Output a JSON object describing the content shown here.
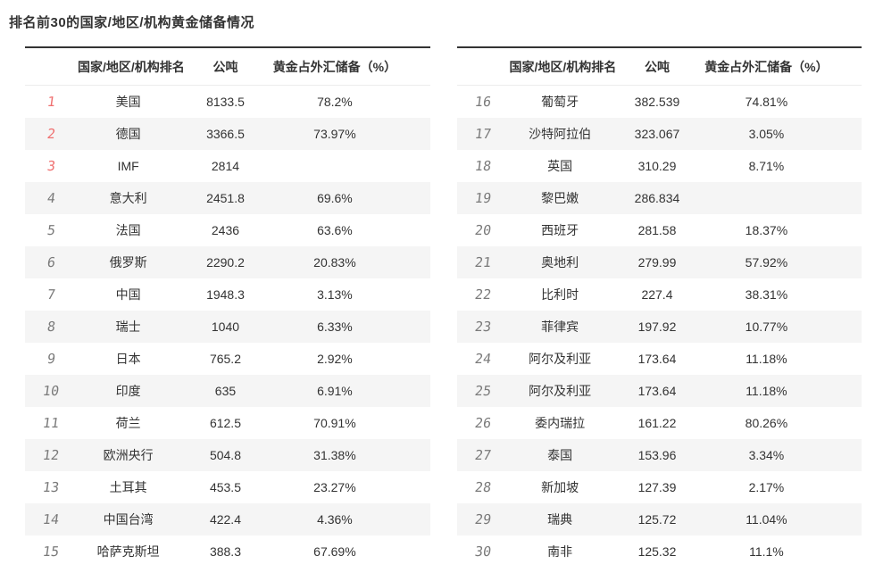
{
  "title": "排名前30的国家/地区/机构黄金储备情况",
  "colors": {
    "text": "#333333",
    "rank_gray": "#7a7a7a",
    "rank_top3_red": "#ef6f6f",
    "row_alt_bg": "#f5f5f5",
    "table_top_border": "#333333"
  },
  "tables": [
    {
      "headers": {
        "name": "国家/地区/机构排名",
        "tonnes": "公吨",
        "pct": "黄金占外汇储备（%）"
      },
      "rows": [
        {
          "rank": "1",
          "name": "美国",
          "tonnes": "8133.5",
          "pct": "78.2%",
          "highlight": true
        },
        {
          "rank": "2",
          "name": "德国",
          "tonnes": "3366.5",
          "pct": "73.97%",
          "highlight": true
        },
        {
          "rank": "3",
          "name": "IMF",
          "tonnes": "2814",
          "pct": "",
          "highlight": true
        },
        {
          "rank": "4",
          "name": "意大利",
          "tonnes": "2451.8",
          "pct": "69.6%"
        },
        {
          "rank": "5",
          "name": "法国",
          "tonnes": "2436",
          "pct": "63.6%"
        },
        {
          "rank": "6",
          "name": "俄罗斯",
          "tonnes": "2290.2",
          "pct": "20.83%"
        },
        {
          "rank": "7",
          "name": "中国",
          "tonnes": "1948.3",
          "pct": "3.13%"
        },
        {
          "rank": "8",
          "name": "瑞士",
          "tonnes": "1040",
          "pct": "6.33%"
        },
        {
          "rank": "9",
          "name": "日本",
          "tonnes": "765.2",
          "pct": "2.92%"
        },
        {
          "rank": "10",
          "name": "印度",
          "tonnes": "635",
          "pct": "6.91%"
        },
        {
          "rank": "11",
          "name": "荷兰",
          "tonnes": "612.5",
          "pct": "70.91%"
        },
        {
          "rank": "12",
          "name": "欧洲央行",
          "tonnes": "504.8",
          "pct": "31.38%"
        },
        {
          "rank": "13",
          "name": "土耳其",
          "tonnes": "453.5",
          "pct": "23.27%"
        },
        {
          "rank": "14",
          "name": "中国台湾",
          "tonnes": "422.4",
          "pct": "4.36%"
        },
        {
          "rank": "15",
          "name": "哈萨克斯坦",
          "tonnes": "388.3",
          "pct": "67.69%"
        }
      ]
    },
    {
      "headers": {
        "name": "国家/地区/机构排名",
        "tonnes": "公吨",
        "pct": "黄金占外汇储备（%）"
      },
      "rows": [
        {
          "rank": "16",
          "name": "葡萄牙",
          "tonnes": "382.539",
          "pct": "74.81%"
        },
        {
          "rank": "17",
          "name": "沙特阿拉伯",
          "tonnes": "323.067",
          "pct": "3.05%"
        },
        {
          "rank": "18",
          "name": "英国",
          "tonnes": "310.29",
          "pct": "8.71%"
        },
        {
          "rank": "19",
          "name": "黎巴嫩",
          "tonnes": "286.834",
          "pct": ""
        },
        {
          "rank": "20",
          "name": "西班牙",
          "tonnes": "281.58",
          "pct": "18.37%"
        },
        {
          "rank": "21",
          "name": "奥地利",
          "tonnes": "279.99",
          "pct": "57.92%"
        },
        {
          "rank": "22",
          "name": "比利时",
          "tonnes": "227.4",
          "pct": "38.31%"
        },
        {
          "rank": "23",
          "name": "菲律宾",
          "tonnes": "197.92",
          "pct": "10.77%"
        },
        {
          "rank": "24",
          "name": "阿尔及利亚",
          "tonnes": "173.64",
          "pct": "11.18%"
        },
        {
          "rank": "25",
          "name": "阿尔及利亚",
          "tonnes": "173.64",
          "pct": "11.18%"
        },
        {
          "rank": "26",
          "name": "委内瑞拉",
          "tonnes": "161.22",
          "pct": "80.26%"
        },
        {
          "rank": "27",
          "name": "泰国",
          "tonnes": "153.96",
          "pct": "3.34%"
        },
        {
          "rank": "28",
          "name": "新加坡",
          "tonnes": "127.39",
          "pct": "2.17%"
        },
        {
          "rank": "29",
          "name": "瑞典",
          "tonnes": "125.72",
          "pct": "11.04%"
        },
        {
          "rank": "30",
          "name": "南非",
          "tonnes": "125.32",
          "pct": "11.1%"
        }
      ]
    }
  ],
  "chart_data": {
    "type": "table",
    "title": "排名前30的国家/地区/机构黄金储备情况",
    "columns": [
      "排名",
      "国家/地区/机构排名",
      "公吨",
      "黄金占外汇储备（%）"
    ],
    "rows": [
      [
        1,
        "美国",
        8133.5,
        "78.2%"
      ],
      [
        2,
        "德国",
        3366.5,
        "73.97%"
      ],
      [
        3,
        "IMF",
        2814,
        ""
      ],
      [
        4,
        "意大利",
        2451.8,
        "69.6%"
      ],
      [
        5,
        "法国",
        2436,
        "63.6%"
      ],
      [
        6,
        "俄罗斯",
        2290.2,
        "20.83%"
      ],
      [
        7,
        "中国",
        1948.3,
        "3.13%"
      ],
      [
        8,
        "瑞士",
        1040,
        "6.33%"
      ],
      [
        9,
        "日本",
        765.2,
        "2.92%"
      ],
      [
        10,
        "印度",
        635,
        "6.91%"
      ],
      [
        11,
        "荷兰",
        612.5,
        "70.91%"
      ],
      [
        12,
        "欧洲央行",
        504.8,
        "31.38%"
      ],
      [
        13,
        "土耳其",
        453.5,
        "23.27%"
      ],
      [
        14,
        "中国台湾",
        422.4,
        "4.36%"
      ],
      [
        15,
        "哈萨克斯坦",
        388.3,
        "67.69%"
      ],
      [
        16,
        "葡萄牙",
        382.539,
        "74.81%"
      ],
      [
        17,
        "沙特阿拉伯",
        323.067,
        "3.05%"
      ],
      [
        18,
        "英国",
        310.29,
        "8.71%"
      ],
      [
        19,
        "黎巴嫩",
        286.834,
        ""
      ],
      [
        20,
        "西班牙",
        281.58,
        "18.37%"
      ],
      [
        21,
        "奥地利",
        279.99,
        "57.92%"
      ],
      [
        22,
        "比利时",
        227.4,
        "38.31%"
      ],
      [
        23,
        "菲律宾",
        197.92,
        "10.77%"
      ],
      [
        24,
        "阿尔及利亚",
        173.64,
        "11.18%"
      ],
      [
        25,
        "阿尔及利亚",
        173.64,
        "11.18%"
      ],
      [
        26,
        "委内瑞拉",
        161.22,
        "80.26%"
      ],
      [
        27,
        "泰国",
        153.96,
        "3.34%"
      ],
      [
        28,
        "新加坡",
        127.39,
        "2.17%"
      ],
      [
        29,
        "瑞典",
        125.72,
        "11.04%"
      ],
      [
        30,
        "南非",
        125.32,
        "11.1%"
      ]
    ],
    "layout_hints": {
      "split": "two side-by-side tables, ranks 1-15 left, 16-30 right",
      "top3_ranks_colored_red": true,
      "alternating_row_stripes": true
    }
  }
}
